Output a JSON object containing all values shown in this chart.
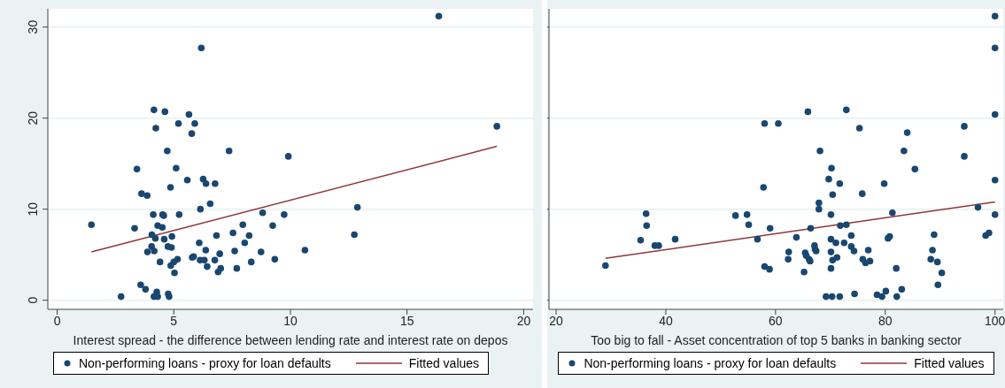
{
  "chart_data": [
    {
      "type": "scatter",
      "xlabel": "Interest spread - the difference between lending rate and interest rate on depos",
      "xlim": [
        -0.4,
        20.4
      ],
      "xticks": [
        0,
        5,
        10,
        15,
        20
      ],
      "ylim": [
        -1,
        32
      ],
      "yticks": [
        0,
        10,
        20,
        30
      ],
      "grid": "y",
      "legend": "bottom",
      "series": [
        {
          "name": "Non-performing loans - proxy for loan defaults",
          "type": "scatter",
          "marker": "circle",
          "color": "#1a476f",
          "x": [
            1.47,
            2.74,
            3.32,
            3.42,
            3.58,
            3.62,
            3.79,
            3.86,
            3.87,
            4.06,
            4.05,
            4.12,
            4.15,
            4.15,
            4.16,
            4.21,
            4.23,
            4.27,
            4.31,
            4.31,
            4.41,
            4.51,
            4.52,
            4.57,
            4.59,
            4.62,
            4.72,
            4.76,
            4.8,
            4.75,
            4.86,
            4.9,
            4.87,
            4.92,
            5.0,
            5.03,
            5.1,
            5.16,
            5.2,
            5.23,
            5.58,
            5.65,
            5.77,
            5.79,
            5.85,
            5.9,
            6.09,
            6.14,
            6.13,
            6.18,
            6.26,
            6.31,
            6.38,
            6.37,
            6.43,
            6.56,
            6.76,
            6.77,
            6.83,
            6.9,
            6.97,
            7.01,
            7.37,
            7.54,
            7.61,
            7.7,
            7.96,
            8.04,
            8.23,
            8.32,
            8.74,
            8.81,
            9.24,
            9.33,
            9.73,
            9.91,
            10.62,
            12.74,
            12.87,
            16.36,
            18.85
          ],
          "values": [
            8.3,
            0.4,
            7.9,
            14.4,
            1.7,
            11.7,
            1.2,
            11.5,
            5.3,
            7.2,
            5.9,
            9.4,
            20.9,
            0.4,
            5.4,
            6.8,
            18.9,
            0.9,
            8.2,
            0.4,
            4.2,
            8.0,
            9.4,
            9.3,
            6.7,
            20.7,
            16.4,
            0.7,
            0.4,
            5.9,
            12.4,
            5.8,
            3.8,
            7.0,
            4.2,
            3.0,
            14.5,
            4.5,
            19.4,
            9.4,
            13.2,
            20.4,
            18.3,
            4.7,
            4.8,
            19.4,
            6.3,
            10.0,
            4.4,
            27.7,
            13.3,
            4.4,
            12.8,
            5.5,
            3.7,
            10.6,
            4.4,
            12.8,
            7.1,
            3.1,
            5.1,
            3.5,
            16.4,
            7.4,
            5.4,
            3.5,
            8.3,
            6.3,
            7.1,
            4.2,
            5.3,
            9.6,
            8.2,
            4.5,
            9.4,
            15.8,
            5.5,
            7.2,
            10.2,
            31.2,
            19.1
          ]
        },
        {
          "name": "Fitted values",
          "type": "line",
          "marker": "none",
          "color": "#90353b",
          "x": [
            1.47,
            18.85
          ],
          "values": [
            5.3,
            16.9
          ]
        }
      ]
    },
    {
      "type": "scatter",
      "xlabel": "Too big to fall - Asset concentration of top 5 banks in banking sector",
      "xlim": [
        18.7,
        101.5
      ],
      "xticks": [
        20,
        40,
        60,
        80,
        100
      ],
      "ylim": [
        -1,
        32
      ],
      "yticks": [
        0,
        10,
        20,
        30
      ],
      "grid": "y",
      "legend": "bottom",
      "tick_labels": "x",
      "series": [
        {
          "name": "Non-performing loans - proxy for loan defaults",
          "type": "scatter",
          "marker": "circle",
          "color": "#1a476f",
          "x": [
            29.0,
            35.4,
            36.4,
            36.5,
            38.0,
            38.7,
            41.7,
            52.7,
            54.8,
            55.1,
            56.7,
            58.0,
            57.8,
            58.0,
            58.9,
            59.0,
            100,
            100,
            100,
            100,
            100,
            60.5,
            62.3,
            62.4,
            63.8,
            65.2,
            65.4,
            65.6,
            65.9,
            66.1,
            66.3,
            66.4,
            67.1,
            67.2,
            67.4,
            67.9,
            67.9,
            68.1,
            69.2,
            69.7,
            70.1,
            70.1,
            70.1,
            70.1,
            70.2,
            70.3,
            70.4,
            70.4,
            71.0,
            71.2,
            71.7,
            71.7,
            71.8,
            72.5,
            72.9,
            72.9,
            73.8,
            73.8,
            74.3,
            74.4,
            75.3,
            75.8,
            75.9,
            76.4,
            76.9,
            77.2,
            78.5,
            79.4,
            79.8,
            80.1,
            80.5,
            80.8,
            81.3,
            82.0,
            82.1,
            83.0,
            83.4,
            84.0,
            85.4,
            88.3,
            88.6,
            88.9,
            89.5,
            89.6,
            90.3,
            94.4,
            94.4,
            96.9,
            98.3,
            98.9
          ],
          "values": [
            3.8,
            6.6,
            9.5,
            8.2,
            6.0,
            6.0,
            6.7,
            9.3,
            9.4,
            8.3,
            6.7,
            19.4,
            12.4,
            3.7,
            3.4,
            7.9,
            31.2,
            27.7,
            20.4,
            13.2,
            9.4,
            19.4,
            4.5,
            5.3,
            6.9,
            3.1,
            5.2,
            4.9,
            20.7,
            4.5,
            4.3,
            7.9,
            6.0,
            5.6,
            5.4,
            10.7,
            10.0,
            16.4,
            0.4,
            13.3,
            9.4,
            6.7,
            5.3,
            3.5,
            14.5,
            0.4,
            4.4,
            11.6,
            6.3,
            4.7,
            0.4,
            12.8,
            8.2,
            6.3,
            8.3,
            20.9,
            7.1,
            5.9,
            5.4,
            0.7,
            18.9,
            11.7,
            4.5,
            4.1,
            5.5,
            4.3,
            0.6,
            0.4,
            12.8,
            1.0,
            6.8,
            7.0,
            9.6,
            3.5,
            0.4,
            1.2,
            16.4,
            18.4,
            14.4,
            4.5,
            5.5,
            7.2,
            4.2,
            1.7,
            3.0,
            19.1,
            15.8,
            10.2,
            7.1,
            7.4
          ]
        },
        {
          "name": "Fitted values",
          "type": "line",
          "marker": "none",
          "color": "#90353b",
          "x": [
            29.0,
            100
          ],
          "values": [
            4.6,
            10.8
          ]
        }
      ]
    }
  ]
}
